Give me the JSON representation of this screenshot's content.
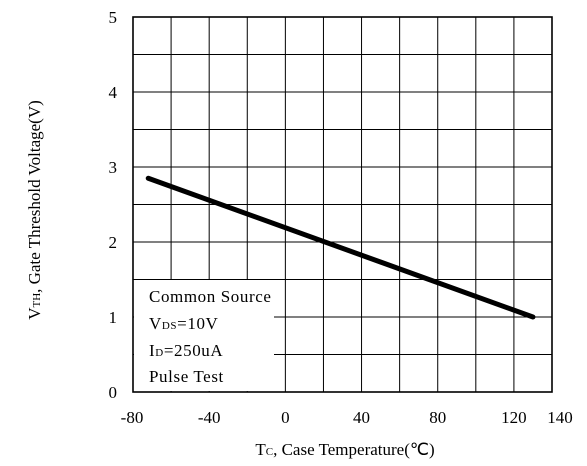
{
  "chart_data": {
    "type": "line",
    "xlabel": {
      "main": "T",
      "sub": "C",
      "rest": ", Case Temperature(℃)"
    },
    "ylabel": {
      "main": "V",
      "sub": "TH",
      "rest": ", Gate Threshold Voltage(V)"
    },
    "xlim": [
      -80,
      140
    ],
    "ylim": [
      0,
      5
    ],
    "x_ticks": [
      -80,
      -40,
      0,
      40,
      80,
      120,
      140
    ],
    "y_ticks": [
      0,
      1,
      2,
      3,
      4,
      5
    ],
    "grid": true,
    "series": [
      {
        "x": [
          -72,
          130
        ],
        "y": [
          2.85,
          1.0
        ]
      }
    ],
    "annotation": [
      {
        "main": "Common Source",
        "sub": "",
        "rest": ""
      },
      {
        "main": "V",
        "sub": "DS",
        "rest": "=10V"
      },
      {
        "main": "I",
        "sub": "D",
        "rest": "=250uA"
      },
      {
        "main": "Pulse Test",
        "sub": "",
        "rest": ""
      }
    ]
  }
}
